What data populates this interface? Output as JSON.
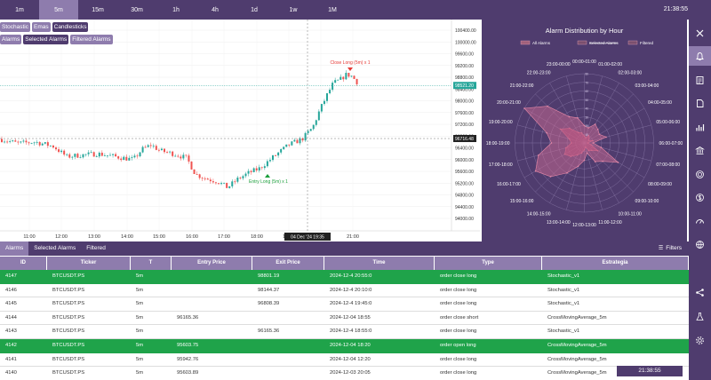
{
  "timeframes": [
    "1m",
    "5m",
    "15m",
    "30m",
    "1h",
    "4h",
    "1d",
    "1w",
    "1M"
  ],
  "active_timeframe": "5m",
  "clock": "21:38:55",
  "indicators_row1": [
    "Stochastic",
    "Emas",
    "Candlesticks"
  ],
  "indicators_row2": [
    "Alarms",
    "Selected Alarms",
    "Filtered Alarms"
  ],
  "chart": {
    "price_labels": [
      "100400.00",
      "100000.00",
      "99600.00",
      "99200.00",
      "98800.00",
      "98400.00",
      "98000.00",
      "97600.00",
      "97200.00",
      "96800.00",
      "96400.00",
      "96000.00",
      "95600.00",
      "95200.00",
      "94800.00",
      "94400.00",
      "94000.00"
    ],
    "time_labels": [
      "11:00",
      "12:00",
      "13:00",
      "14:00",
      "15:00",
      "16:00",
      "17:00",
      "18:00",
      "19:00",
      "20:00",
      "21:00"
    ],
    "current_price": "98521.20",
    "crosshair_price": "96716.48",
    "crosshair_time": "04 Dec '24  19:35",
    "marker_close": "Close Long (5m) x 1",
    "marker_entry": "Entry Long (5m) x 1"
  },
  "polar": {
    "title": "Alarm Distribution by Hour",
    "legend": [
      "All Alarms",
      "Selected Alarms",
      "Filtered"
    ],
    "hours": [
      "00:00-01:00",
      "01:00-02:00",
      "02:00-03:00",
      "03:00-04:00",
      "04:00-05:00",
      "05:00-06:00",
      "06:00-07:00",
      "07:00-08:00",
      "08:00-09:00",
      "09:00-10:00",
      "10:00-11:00",
      "11:00-12:00",
      "12:00-13:00",
      "13:00-14:00",
      "14:00-15:00",
      "15:00-16:00",
      "16:00-17:00",
      "17:00-18:00",
      "18:00-19:00",
      "19:00-20:00",
      "20:00-21:00",
      "21:00-22:00",
      "22:00-23:00",
      "23:00-00:00"
    ],
    "all_values": [
      20,
      18,
      25,
      22,
      20,
      26,
      10,
      20,
      45,
      30,
      25,
      12,
      20,
      28,
      40,
      55,
      65,
      55,
      38,
      45,
      80,
      60,
      35,
      30
    ],
    "filtered_values": [
      8,
      6,
      10,
      8,
      6,
      10,
      4,
      8,
      18,
      12,
      10,
      5,
      8,
      12,
      16,
      22,
      26,
      22,
      15,
      18,
      32,
      24,
      14,
      12
    ]
  },
  "tabs": [
    "Alarms",
    "Selected Alarms",
    "Filtered"
  ],
  "filters_label": "Filters",
  "table": {
    "columns": [
      "ID",
      "Ticker",
      "T",
      "Entry Price",
      "Exit Price",
      "Time",
      "Type",
      "Estrategia"
    ],
    "rows": [
      {
        "id": "4147",
        "ticker": "BTCUSDT.PS",
        "t": "5m",
        "entry": "",
        "exit": "98801.19",
        "time": "2024-12-4 20:55:0",
        "type": "order close long",
        "strategy": "Stochastic_v1",
        "highlight": true
      },
      {
        "id": "4146",
        "ticker": "BTCUSDT.PS",
        "t": "5m",
        "entry": "",
        "exit": "98144.37",
        "time": "2024-12-4 20:10:0",
        "type": "order close long",
        "strategy": "Stochastic_v1",
        "highlight": false
      },
      {
        "id": "4145",
        "ticker": "BTCUSDT.PS",
        "t": "5m",
        "entry": "",
        "exit": "96808.39",
        "time": "2024-12-4 19:45:0",
        "type": "order close long",
        "strategy": "Stochastic_v1",
        "highlight": false
      },
      {
        "id": "4144",
        "ticker": "BTCUSDT.PS",
        "t": "5m",
        "entry": "96165.36",
        "exit": "",
        "time": "2024-12-04 18:55",
        "type": "order close short",
        "strategy": "CrossMovingAverage_5m",
        "highlight": false
      },
      {
        "id": "4143",
        "ticker": "BTCUSDT.PS",
        "t": "5m",
        "entry": "",
        "exit": "96165.36",
        "time": "2024-12-4 18:55:0",
        "type": "order close long",
        "strategy": "Stochastic_v1",
        "highlight": false
      },
      {
        "id": "4142",
        "ticker": "BTCUSDT.PS",
        "t": "5m",
        "entry": "95603.75",
        "exit": "",
        "time": "2024-12-04 18:20",
        "type": "order open long",
        "strategy": "CrossMovingAverage_5m",
        "highlight": true
      },
      {
        "id": "4141",
        "ticker": "BTCUSDT.PS",
        "t": "5m",
        "entry": "95942.76",
        "exit": "",
        "time": "2024-12-04 12:20",
        "type": "order close long",
        "strategy": "CrossMovingAverage_5m",
        "highlight": false
      },
      {
        "id": "4140",
        "ticker": "BTCUSDT.PS",
        "t": "5m",
        "entry": "95603.89",
        "exit": "",
        "time": "2024-12-03 20:05",
        "type": "order close long",
        "strategy": "CrossMovingAverage_5m",
        "highlight": false
      }
    ]
  },
  "rail_icons": [
    "collapse-icon",
    "bell-icon",
    "notes-icon",
    "document-icon",
    "bar-chart-icon",
    "bank-icon",
    "target-icon",
    "dollar-icon",
    "gauge-icon",
    "globe-icon",
    "share-icon",
    "flask-icon",
    "settings-icon"
  ],
  "colors": {
    "primary": "#4f3c6e",
    "accent": "#8e7cad",
    "up": "#26a69a",
    "down": "#ef5350",
    "highlight": "#1fa34a"
  }
}
